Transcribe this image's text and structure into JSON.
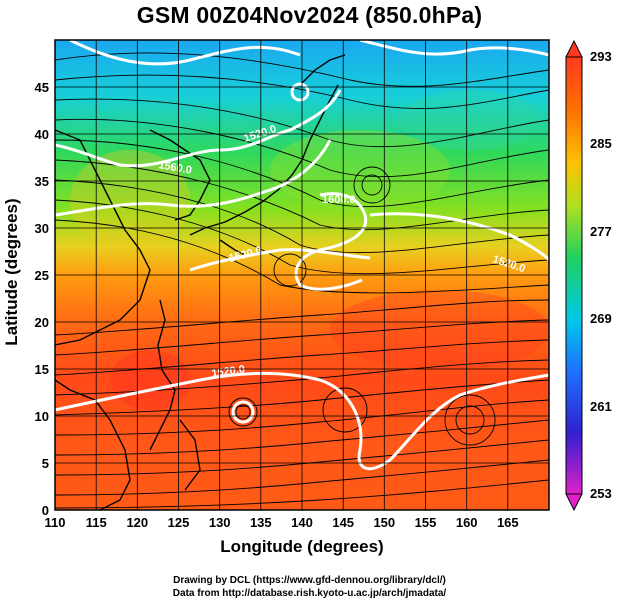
{
  "title": "GSM 00Z04Nov2024 (850.0hPa)",
  "xlabel": "Longitude (degrees)",
  "ylabel": "Latitude  (degrees)",
  "credits": [
    "Drawing by DCL (https://www.gfd-dennou.org/library/dcl/)",
    "Data from http://database.rish.kyoto-u.ac.jp/arch/jmadata/"
  ],
  "map": {
    "lon_range": [
      110,
      170
    ],
    "lat_range": [
      0,
      50
    ],
    "x_ticks": [
      "110",
      "115",
      "120",
      "125",
      "130",
      "135",
      "140",
      "145",
      "150",
      "155",
      "160",
      "165"
    ],
    "y_ticks": [
      "0",
      "5",
      "10",
      "15",
      "20",
      "25",
      "30",
      "35",
      "40",
      "45"
    ],
    "grid": true
  },
  "colorbar": {
    "min": 253,
    "max": 293,
    "ticks": [
      "253",
      "261",
      "269",
      "277",
      "285",
      "293"
    ],
    "colors": [
      "#e020c8",
      "#2020d0",
      "#1e90ff",
      "#00d8c0",
      "#30d040",
      "#e0e020",
      "#ff9a00",
      "#ff3a18"
    ]
  },
  "contour_labels": [
    "1520.0",
    "1560.0",
    "1520.0",
    "1560.0",
    "1600.0",
    "1520.0",
    "1520.0"
  ]
}
